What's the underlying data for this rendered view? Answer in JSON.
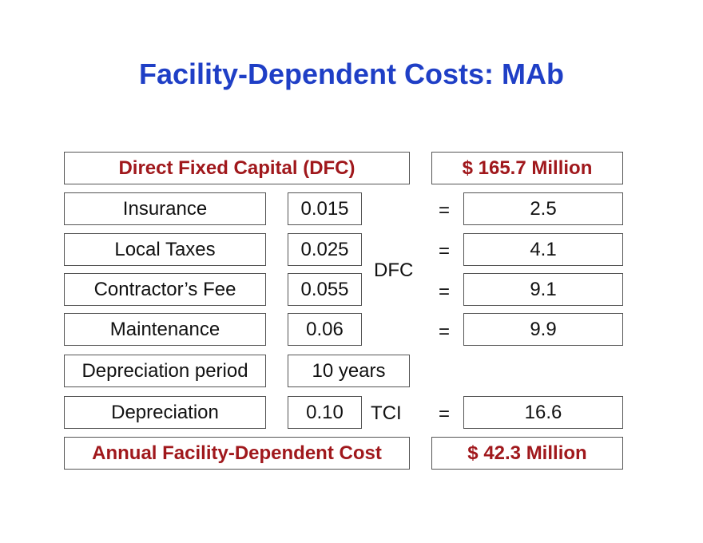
{
  "title": "Facility-Dependent Costs: MAb",
  "header_row": {
    "label": "Direct Fixed Capital (DFC)",
    "value": "$ 165.7 Million"
  },
  "rows": [
    {
      "label": "Insurance",
      "factor": "0.015",
      "result": "2.5"
    },
    {
      "label": "Local Taxes",
      "factor": "0.025",
      "result": "4.1"
    },
    {
      "label": "Contractor’s Fee",
      "factor": "0.055",
      "result": "9.1"
    },
    {
      "label": "Maintenance",
      "factor": "0.06",
      "result": "9.9"
    }
  ],
  "dfc_basis": "DFC",
  "equals": "=",
  "depreciation_period": {
    "label": "Depreciation period",
    "value": "10 years"
  },
  "depreciation": {
    "label": "Depreciation",
    "factor": "0.10",
    "basis": "TCI",
    "result": "16.6"
  },
  "total_row": {
    "label": "Annual Facility-Dependent Cost",
    "value": "$ 42.3 Million"
  },
  "colors": {
    "title": "#1f3fc6",
    "highlight": "#a0181c",
    "text": "#111111",
    "border": "#555555"
  }
}
